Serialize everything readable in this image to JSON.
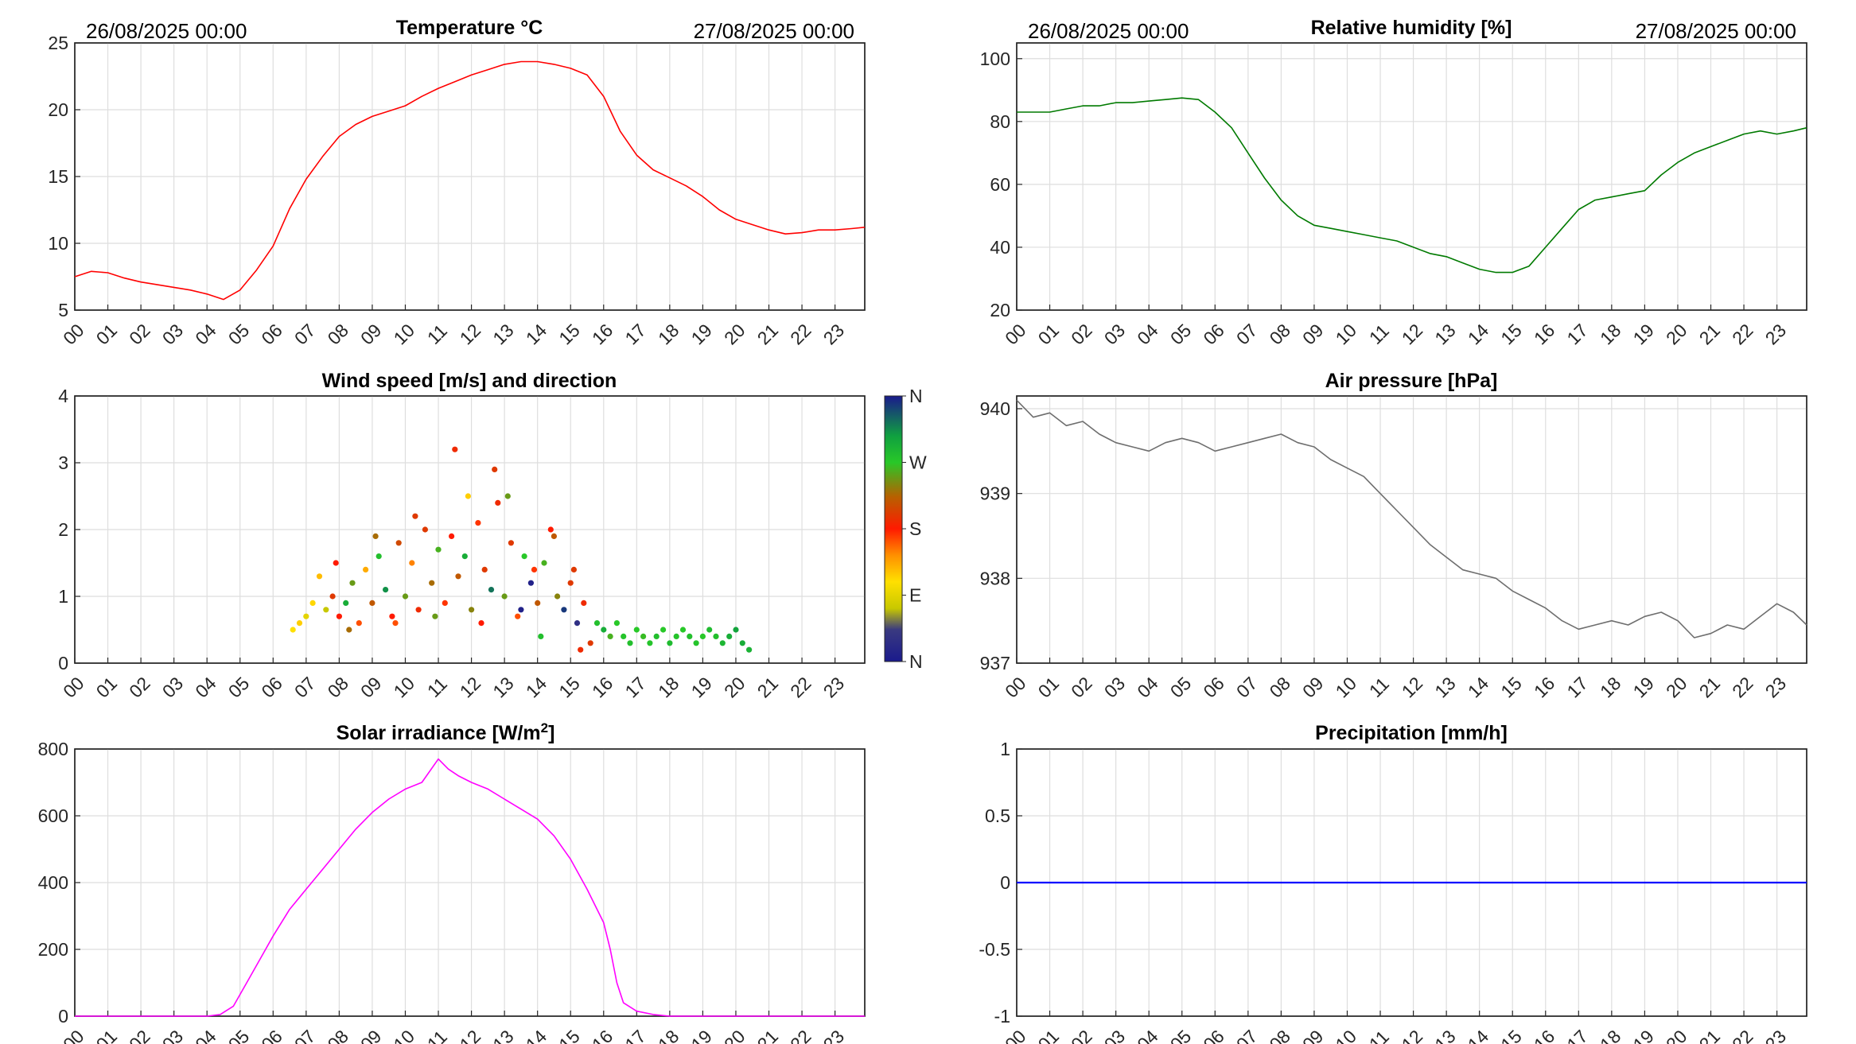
{
  "dates": {
    "start": "26/08/2025 00:00",
    "end": "27/08/2025 00:00"
  },
  "hour_labels": [
    "00",
    "01",
    "02",
    "03",
    "04",
    "05",
    "06",
    "07",
    "08",
    "09",
    "10",
    "11",
    "12",
    "13",
    "14",
    "15",
    "16",
    "17",
    "18",
    "19",
    "20",
    "21",
    "22",
    "23"
  ],
  "colorbar": {
    "labels": [
      "N",
      "W",
      "S",
      "E",
      "N"
    ]
  },
  "chart_data": [
    {
      "id": "temperature",
      "type": "line",
      "title": "Temperature °C",
      "ylim": [
        5,
        25
      ],
      "yticks": [
        "5",
        "10",
        "15",
        "20",
        "25"
      ],
      "color": "#ff0000",
      "x": [
        0,
        0.5,
        1,
        1.5,
        2,
        2.5,
        3,
        3.5,
        4,
        4.5,
        5,
        5.5,
        6,
        6.5,
        7,
        7.5,
        8,
        8.5,
        9,
        9.5,
        10,
        10.5,
        11,
        11.5,
        12,
        12.5,
        13,
        13.5,
        14,
        14.5,
        15,
        15.5,
        16,
        16.5,
        17,
        17.5,
        18,
        18.5,
        19,
        19.5,
        20,
        20.5,
        21,
        21.5,
        22,
        22.5,
        23,
        23.5,
        23.9
      ],
      "values": [
        7.5,
        7.9,
        7.8,
        7.4,
        7.1,
        6.9,
        6.7,
        6.5,
        6.2,
        5.8,
        6.5,
        8.0,
        9.8,
        12.6,
        14.8,
        16.5,
        18.0,
        18.9,
        19.5,
        19.9,
        20.3,
        21.0,
        21.6,
        22.1,
        22.6,
        23.0,
        23.4,
        23.6,
        23.6,
        23.4,
        23.1,
        22.6,
        21.0,
        18.4,
        16.6,
        15.5,
        14.9,
        14.3,
        13.5,
        12.5,
        11.8,
        11.4,
        11.0,
        10.7,
        10.8,
        11.0,
        11.0,
        11.1,
        11.2
      ]
    },
    {
      "id": "humidity",
      "type": "line",
      "title": "Relative humidity [%]",
      "ylim": [
        20,
        105
      ],
      "yticks": [
        "20",
        "40",
        "60",
        "80",
        "100"
      ],
      "color": "#007a00",
      "x": [
        0,
        0.5,
        1,
        1.5,
        2,
        2.5,
        3,
        3.5,
        4,
        4.5,
        5,
        5.5,
        6,
        6.5,
        7,
        7.5,
        8,
        8.5,
        9,
        9.5,
        10,
        10.5,
        11,
        11.5,
        12,
        12.5,
        13,
        13.5,
        14,
        14.5,
        15,
        15.5,
        16,
        16.5,
        17,
        17.5,
        18,
        18.5,
        19,
        19.5,
        20,
        20.5,
        21,
        21.5,
        22,
        22.5,
        23,
        23.5,
        23.9
      ],
      "values": [
        83,
        83,
        83,
        84,
        85,
        85,
        86,
        86,
        86.5,
        87,
        87.5,
        87,
        83,
        78,
        70,
        62,
        55,
        50,
        47,
        46,
        45,
        44,
        43,
        42,
        40,
        38,
        37,
        35,
        33,
        32,
        32,
        34,
        40,
        46,
        52,
        55,
        56,
        57,
        58,
        63,
        67,
        70,
        72,
        74,
        76,
        77,
        76,
        77,
        78
      ]
    },
    {
      "id": "wind",
      "type": "scatter",
      "title": "Wind speed [m/s] and direction",
      "ylim": [
        0,
        4
      ],
      "yticks": [
        "0",
        "1",
        "2",
        "3",
        "4"
      ],
      "x": [
        6.6,
        6.8,
        7.0,
        7.2,
        7.4,
        7.6,
        7.8,
        8.0,
        8.2,
        8.4,
        8.6,
        8.8,
        9.0,
        9.2,
        9.4,
        9.6,
        9.8,
        10.0,
        10.2,
        10.4,
        10.6,
        10.8,
        11.0,
        11.2,
        11.4,
        11.6,
        11.8,
        12.0,
        12.2,
        12.4,
        12.6,
        12.8,
        13.0,
        13.2,
        13.4,
        13.6,
        13.8,
        14.0,
        14.2,
        14.4,
        14.6,
        14.8,
        15.0,
        15.2,
        15.4,
        15.6,
        15.8,
        16.0,
        16.2,
        16.4,
        16.6,
        16.8,
        17.0,
        17.2,
        17.4,
        17.6,
        17.8,
        18.0,
        18.2,
        18.4,
        18.6,
        18.8,
        19.0,
        19.2,
        19.4,
        19.6,
        19.8,
        20.0,
        20.2,
        20.4,
        7.9,
        9.1,
        10.3,
        11.5,
        11.9,
        12.7,
        13.1,
        13.9,
        14.5,
        15.1,
        8.3,
        9.7,
        10.9,
        12.3,
        13.5,
        14.1,
        15.3
      ],
      "speed": [
        0.5,
        0.6,
        0.7,
        0.9,
        1.3,
        0.8,
        1.0,
        0.7,
        0.9,
        1.2,
        0.6,
        1.4,
        0.9,
        1.6,
        1.1,
        0.7,
        1.8,
        1.0,
        1.5,
        0.8,
        2.0,
        1.2,
        1.7,
        0.9,
        1.9,
        1.3,
        1.6,
        0.8,
        2.1,
        1.4,
        1.1,
        2.4,
        1.0,
        1.8,
        0.7,
        1.6,
        1.2,
        0.9,
        1.5,
        2.0,
        1.0,
        0.8,
        1.2,
        0.6,
        0.9,
        0.3,
        0.6,
        0.5,
        0.4,
        0.6,
        0.4,
        0.3,
        0.5,
        0.4,
        0.3,
        0.4,
        0.5,
        0.3,
        0.4,
        0.5,
        0.4,
        0.3,
        0.4,
        0.5,
        0.4,
        0.3,
        0.4,
        0.5,
        0.3,
        0.2,
        1.5,
        1.9,
        2.2,
        3.2,
        2.5,
        2.9,
        2.5,
        1.4,
        1.9,
        1.4,
        0.5,
        0.6,
        0.7,
        0.6,
        0.8,
        0.4,
        0.2
      ],
      "direction": [
        90,
        100,
        80,
        95,
        110,
        70,
        200,
        180,
        300,
        250,
        160,
        120,
        220,
        280,
        320,
        180,
        210,
        250,
        140,
        190,
        200,
        230,
        260,
        170,
        180,
        220,
        300,
        240,
        170,
        200,
        330,
        190,
        250,
        200,
        160,
        270,
        10,
        220,
        260,
        180,
        240,
        350,
        200,
        30,
        190,
        200,
        280,
        300,
        260,
        270,
        275,
        280,
        270,
        265,
        275,
        280,
        270,
        285,
        275,
        270,
        280,
        275,
        270,
        285,
        280,
        290,
        300,
        310,
        300,
        295,
        180,
        230,
        200,
        190,
        100,
        200,
        250,
        170,
        220,
        200,
        230,
        160,
        250,
        180,
        10,
        280,
        190
      ]
    },
    {
      "id": "pressure",
      "type": "line",
      "title": "Air pressure [hPa]",
      "ylim": [
        937,
        940.15
      ],
      "yticks": [
        "937",
        "938",
        "939",
        "940"
      ],
      "color": "#6e6e6e",
      "x": [
        0,
        0.5,
        1,
        1.5,
        2,
        2.5,
        3,
        3.5,
        4,
        4.5,
        5,
        5.5,
        6,
        6.5,
        7,
        7.5,
        8,
        8.5,
        9,
        9.5,
        10,
        10.5,
        11,
        11.5,
        12,
        12.5,
        13,
        13.5,
        14,
        14.5,
        15,
        15.5,
        16,
        16.5,
        17,
        17.5,
        18,
        18.5,
        19,
        19.5,
        20,
        20.5,
        21,
        21.5,
        22,
        22.5,
        23,
        23.5,
        23.9
      ],
      "values": [
        940.1,
        939.9,
        939.95,
        939.8,
        939.85,
        939.7,
        939.6,
        939.55,
        939.5,
        939.6,
        939.65,
        939.6,
        939.5,
        939.55,
        939.6,
        939.65,
        939.7,
        939.6,
        939.55,
        939.4,
        939.3,
        939.2,
        939.0,
        938.8,
        938.6,
        938.4,
        938.25,
        938.1,
        938.05,
        938.0,
        937.85,
        937.75,
        937.65,
        937.5,
        937.4,
        937.45,
        937.5,
        937.45,
        937.55,
        937.6,
        937.5,
        937.3,
        937.35,
        937.45,
        937.4,
        937.55,
        937.7,
        937.6,
        937.45
      ]
    },
    {
      "id": "solar",
      "type": "line",
      "title": "Solar irradiance [W/m²]",
      "title_main": "Solar irradiance [W/m",
      "title_sup": "2",
      "title_end": "]",
      "ylim": [
        0,
        800
      ],
      "yticks": [
        "0",
        "200",
        "400",
        "600",
        "800"
      ],
      "color": "#ff00ff",
      "x": [
        0,
        1,
        2,
        3,
        4,
        4.4,
        4.8,
        5.2,
        5.6,
        6.0,
        6.5,
        7.0,
        7.5,
        8.0,
        8.5,
        9.0,
        9.5,
        10.0,
        10.5,
        11.0,
        11.3,
        11.6,
        12.0,
        12.5,
        13.0,
        13.5,
        14.0,
        14.5,
        15.0,
        15.5,
        15.8,
        16.0,
        16.2,
        16.4,
        16.6,
        17.0,
        17.5,
        18.0,
        19,
        20,
        21,
        22,
        23,
        23.9
      ],
      "values": [
        0,
        0,
        0,
        0,
        0,
        5,
        30,
        100,
        170,
        240,
        320,
        380,
        440,
        500,
        560,
        610,
        650,
        680,
        700,
        770,
        740,
        720,
        700,
        680,
        650,
        620,
        590,
        540,
        470,
        380,
        320,
        280,
        200,
        100,
        40,
        15,
        5,
        0,
        0,
        0,
        0,
        0,
        0,
        0
      ]
    },
    {
      "id": "precip",
      "type": "line",
      "title": "Precipitation [mm/h]",
      "ylim": [
        -1,
        1
      ],
      "yticks": [
        "-1",
        "-0.5",
        "0",
        "0.5",
        "1"
      ],
      "color": "#0000ff",
      "x": [
        0,
        23.9
      ],
      "values": [
        0,
        0
      ]
    }
  ]
}
